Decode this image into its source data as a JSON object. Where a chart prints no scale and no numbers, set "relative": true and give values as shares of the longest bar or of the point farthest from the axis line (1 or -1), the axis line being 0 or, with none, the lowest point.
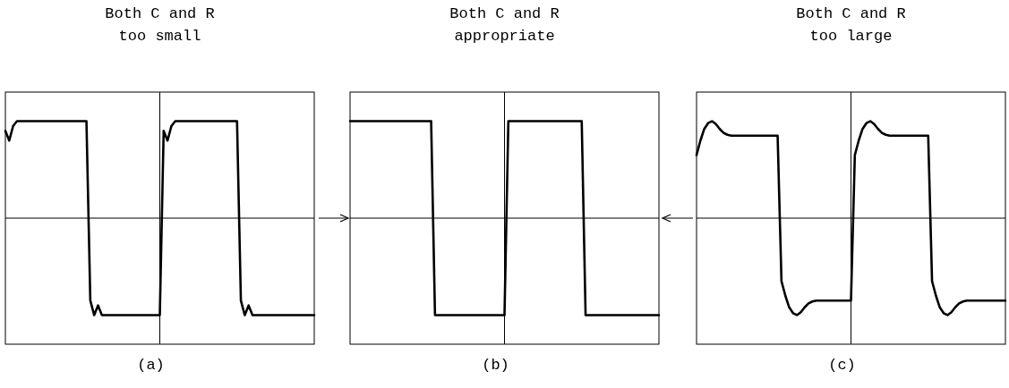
{
  "chart_data": [
    {
      "type": "line",
      "title": "Both C and R\ntoo small",
      "xlabel": "(a)",
      "relative": true,
      "categories": [
        null,
        null,
        null,
        null,
        null,
        null,
        null,
        null,
        null,
        null,
        null,
        null,
        null,
        null,
        null,
        null,
        null,
        null,
        null,
        null,
        null,
        null,
        null,
        null,
        null,
        null,
        null,
        null,
        null,
        null,
        null,
        null,
        null,
        null,
        null,
        null,
        null,
        null,
        null,
        null,
        null,
        null,
        null,
        null,
        null,
        null,
        null,
        null,
        null,
        null,
        null,
        null,
        null,
        null,
        null,
        null,
        null,
        null,
        null,
        null,
        null,
        null,
        null,
        null,
        null,
        null,
        null,
        null,
        null,
        null,
        null,
        null,
        null,
        null,
        null,
        null,
        null,
        null,
        null,
        null,
        null
      ],
      "series": [
        {
          "color": "#000000",
          "values": [
            0.9,
            0.8,
            0.95,
            1,
            1,
            1,
            1,
            1,
            1,
            1,
            1,
            1,
            1,
            1,
            1,
            1,
            1,
            1,
            1,
            1,
            1,
            1,
            -0.85,
            -1,
            -0.9,
            -1,
            -1,
            -1,
            -1,
            -1,
            -1,
            -1,
            -1,
            -1,
            -1,
            -1,
            -1,
            -1,
            -1,
            -1,
            -1,
            0.9,
            0.8,
            0.95,
            1,
            1,
            1,
            1,
            1,
            1,
            1,
            1,
            1,
            1,
            1,
            1,
            1,
            1,
            1,
            1,
            1,
            -0.85,
            -1,
            -0.9,
            -1,
            -1,
            -1,
            -1,
            -1,
            -1,
            -1,
            -1,
            -1,
            -1,
            -1,
            -1,
            -1,
            -1,
            -1,
            -1,
            -1
          ]
        }
      ]
    },
    {
      "type": "line",
      "title": "Both C and R\nappropriate",
      "xlabel": "(b)",
      "relative": true,
      "categories": [
        null,
        null,
        null,
        null,
        null,
        null,
        null,
        null,
        null,
        null,
        null,
        null,
        null,
        null,
        null,
        null,
        null,
        null,
        null,
        null,
        null,
        null,
        null,
        null,
        null,
        null,
        null,
        null,
        null,
        null,
        null,
        null,
        null,
        null,
        null,
        null,
        null,
        null,
        null,
        null,
        null,
        null,
        null,
        null,
        null,
        null,
        null,
        null,
        null,
        null,
        null,
        null,
        null,
        null,
        null,
        null,
        null,
        null,
        null,
        null,
        null,
        null,
        null,
        null,
        null,
        null,
        null,
        null,
        null,
        null,
        null,
        null,
        null,
        null,
        null,
        null,
        null,
        null,
        null,
        null,
        null
      ],
      "series": [
        {
          "color": "#000000",
          "values": [
            1,
            1,
            1,
            1,
            1,
            1,
            1,
            1,
            1,
            1,
            1,
            1,
            1,
            1,
            1,
            1,
            1,
            1,
            1,
            1,
            1,
            1,
            -1,
            -1,
            -1,
            -1,
            -1,
            -1,
            -1,
            -1,
            -1,
            -1,
            -1,
            -1,
            -1,
            -1,
            -1,
            -1,
            -1,
            -1,
            -1,
            1,
            1,
            1,
            1,
            1,
            1,
            1,
            1,
            1,
            1,
            1,
            1,
            1,
            1,
            1,
            1,
            1,
            1,
            1,
            1,
            -1,
            -1,
            -1,
            -1,
            -1,
            -1,
            -1,
            -1,
            -1,
            -1,
            -1,
            -1,
            -1,
            -1,
            -1,
            -1,
            -1,
            -1,
            -1,
            -1
          ]
        }
      ]
    },
    {
      "type": "line",
      "title": "Both C and R\ntoo large",
      "xlabel": "(c)",
      "relative": true,
      "categories": [
        null,
        null,
        null,
        null,
        null,
        null,
        null,
        null,
        null,
        null,
        null,
        null,
        null,
        null,
        null,
        null,
        null,
        null,
        null,
        null,
        null,
        null,
        null,
        null,
        null,
        null,
        null,
        null,
        null,
        null,
        null,
        null,
        null,
        null,
        null,
        null,
        null,
        null,
        null,
        null,
        null,
        null,
        null,
        null,
        null,
        null,
        null,
        null,
        null,
        null,
        null,
        null,
        null,
        null,
        null,
        null,
        null,
        null,
        null,
        null,
        null,
        null,
        null,
        null,
        null,
        null,
        null,
        null,
        null,
        null,
        null,
        null,
        null,
        null,
        null,
        null,
        null,
        null,
        null,
        null,
        null
      ],
      "series": [
        {
          "color": "#000000",
          "values": [
            0.65,
            0.8,
            0.92,
            0.98,
            1,
            0.97,
            0.92,
            0.88,
            0.86,
            0.85,
            0.85,
            0.85,
            0.85,
            0.85,
            0.85,
            0.85,
            0.85,
            0.85,
            0.85,
            0.85,
            0.85,
            0.85,
            -0.65,
            -0.8,
            -0.92,
            -0.98,
            -1,
            -0.97,
            -0.92,
            -0.88,
            -0.86,
            -0.85,
            -0.85,
            -0.85,
            -0.85,
            -0.85,
            -0.85,
            -0.85,
            -0.85,
            -0.85,
            -0.85,
            0.65,
            0.8,
            0.92,
            0.98,
            1,
            0.97,
            0.92,
            0.88,
            0.86,
            0.85,
            0.85,
            0.85,
            0.85,
            0.85,
            0.85,
            0.85,
            0.85,
            0.85,
            0.85,
            0.85,
            -0.65,
            -0.8,
            -0.92,
            -0.98,
            -1,
            -0.97,
            -0.92,
            -0.88,
            -0.86,
            -0.85,
            -0.85,
            -0.85,
            -0.85,
            -0.85,
            -0.85,
            -0.85,
            -0.85,
            -0.85,
            -0.85,
            -0.85
          ]
        }
      ]
    }
  ]
}
